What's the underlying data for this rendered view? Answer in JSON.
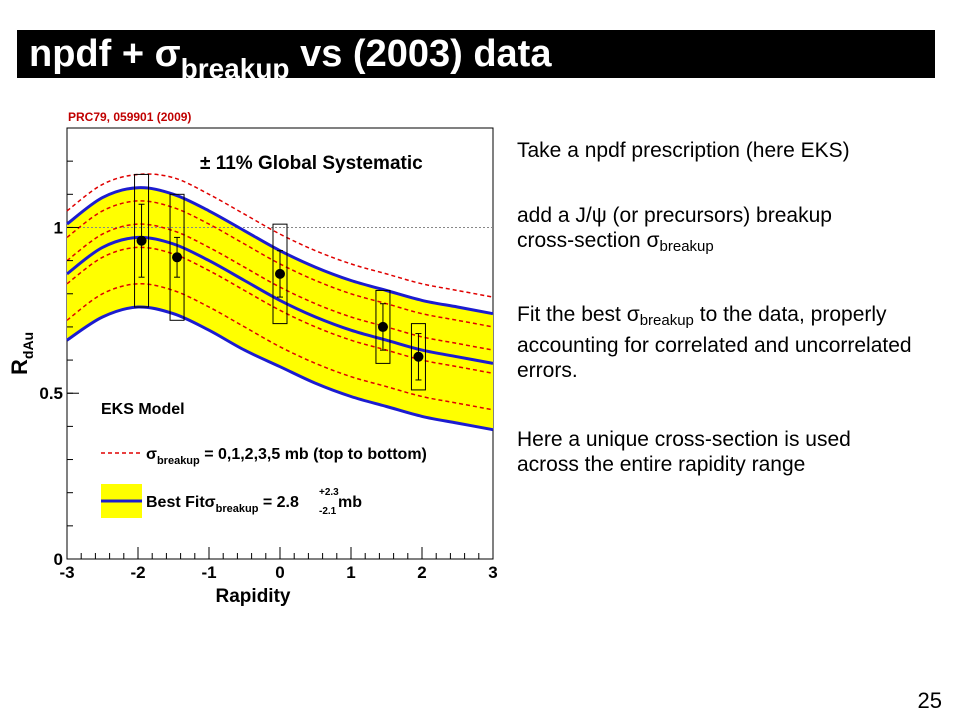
{
  "slide": {
    "title_main": "npdf + ",
    "title_sigma": "σ",
    "title_sub": "breakup",
    "title_rest": " vs (2003) data",
    "citation": "PRC79, 059901 (2009)",
    "page_number": "25",
    "colors": {
      "band": "#ffff00",
      "blue": "#1c1cd0",
      "red": "#e00000",
      "title_bg": "#000000"
    }
  },
  "text": {
    "p1": "Take a npdf prescription (here EKS)",
    "p2_line1": "add a J/ψ (or precursors) breakup",
    "p2_line2_a": "cross-section ",
    "p2_sigma": "σ",
    "p2_sub": "breakup",
    "p3_a": "Fit the best ",
    "p3_sigma": "σ",
    "p3_sub": "breakup",
    "p3_b": " to the data, properly accounting for correlated and uncorrelated errors.",
    "p4": "Here a unique cross-section is used across the entire rapidity range"
  },
  "chart_data": {
    "type": "line",
    "xlabel": "Rapidity",
    "ylabel_main": "R",
    "ylabel_sub": "dAu",
    "xlim": [
      -3,
      3
    ],
    "ylim": [
      0,
      1.3
    ],
    "x_ticks": [
      "-3",
      "-2",
      "-1",
      "0",
      "1",
      "2",
      "3"
    ],
    "y_ticks": [
      {
        "v": 0,
        "label": "0"
      },
      {
        "v": 0.5,
        "label": "0.5"
      },
      {
        "v": 1,
        "label": "1"
      }
    ],
    "reference_line": 1.0,
    "systematic_label": "± 11% Global Systematic",
    "legend": {
      "title": "EKS Model",
      "red_sigma": "σ",
      "red_sub": "breakup",
      "red_rest": " = 0,1,2,3,5 mb (top to bottom)",
      "band_a": "Best Fit",
      "band_sigma": "σ",
      "band_sub": "breakup",
      "band_eq": " = 2.8",
      "band_up": "+2.3",
      "band_dn": "-2.1",
      "band_unit": " mb"
    },
    "x": [
      -3,
      -2.5,
      -2,
      -1.5,
      -1,
      -0.5,
      0,
      0.5,
      1,
      1.5,
      2,
      2.5,
      3
    ],
    "red_curves": [
      {
        "values": [
          1.05,
          1.13,
          1.16,
          1.15,
          1.1,
          1.04,
          0.98,
          0.93,
          0.89,
          0.86,
          0.83,
          0.81,
          0.79
        ]
      },
      {
        "values": [
          0.97,
          1.05,
          1.08,
          1.06,
          1.01,
          0.95,
          0.89,
          0.84,
          0.8,
          0.77,
          0.74,
          0.72,
          0.7
        ]
      },
      {
        "values": [
          0.9,
          0.98,
          1.01,
          0.99,
          0.94,
          0.88,
          0.82,
          0.77,
          0.73,
          0.7,
          0.67,
          0.65,
          0.63
        ]
      },
      {
        "values": [
          0.83,
          0.91,
          0.94,
          0.92,
          0.87,
          0.81,
          0.75,
          0.7,
          0.66,
          0.63,
          0.6,
          0.58,
          0.56
        ]
      },
      {
        "values": [
          0.72,
          0.8,
          0.83,
          0.81,
          0.76,
          0.7,
          0.64,
          0.59,
          0.55,
          0.52,
          0.49,
          0.47,
          0.45
        ]
      }
    ],
    "best_fit": {
      "upper": [
        1.01,
        1.09,
        1.12,
        1.1,
        1.05,
        0.99,
        0.93,
        0.88,
        0.84,
        0.81,
        0.78,
        0.76,
        0.74
      ],
      "central": [
        0.86,
        0.94,
        0.97,
        0.95,
        0.9,
        0.84,
        0.78,
        0.73,
        0.69,
        0.66,
        0.63,
        0.61,
        0.59
      ],
      "lower": [
        0.66,
        0.73,
        0.76,
        0.74,
        0.69,
        0.63,
        0.58,
        0.53,
        0.49,
        0.46,
        0.43,
        0.41,
        0.39
      ]
    },
    "data_points": [
      {
        "x": -1.95,
        "y": 0.96,
        "err": 0.11,
        "sys": 0.2
      },
      {
        "x": -1.45,
        "y": 0.91,
        "err": 0.06,
        "sys": 0.19
      },
      {
        "x": 0.0,
        "y": 0.86,
        "err": 0.07,
        "sys": 0.15
      },
      {
        "x": 1.45,
        "y": 0.7,
        "err": 0.07,
        "sys": 0.11
      },
      {
        "x": 1.95,
        "y": 0.61,
        "err": 0.07,
        "sys": 0.1
      }
    ]
  }
}
